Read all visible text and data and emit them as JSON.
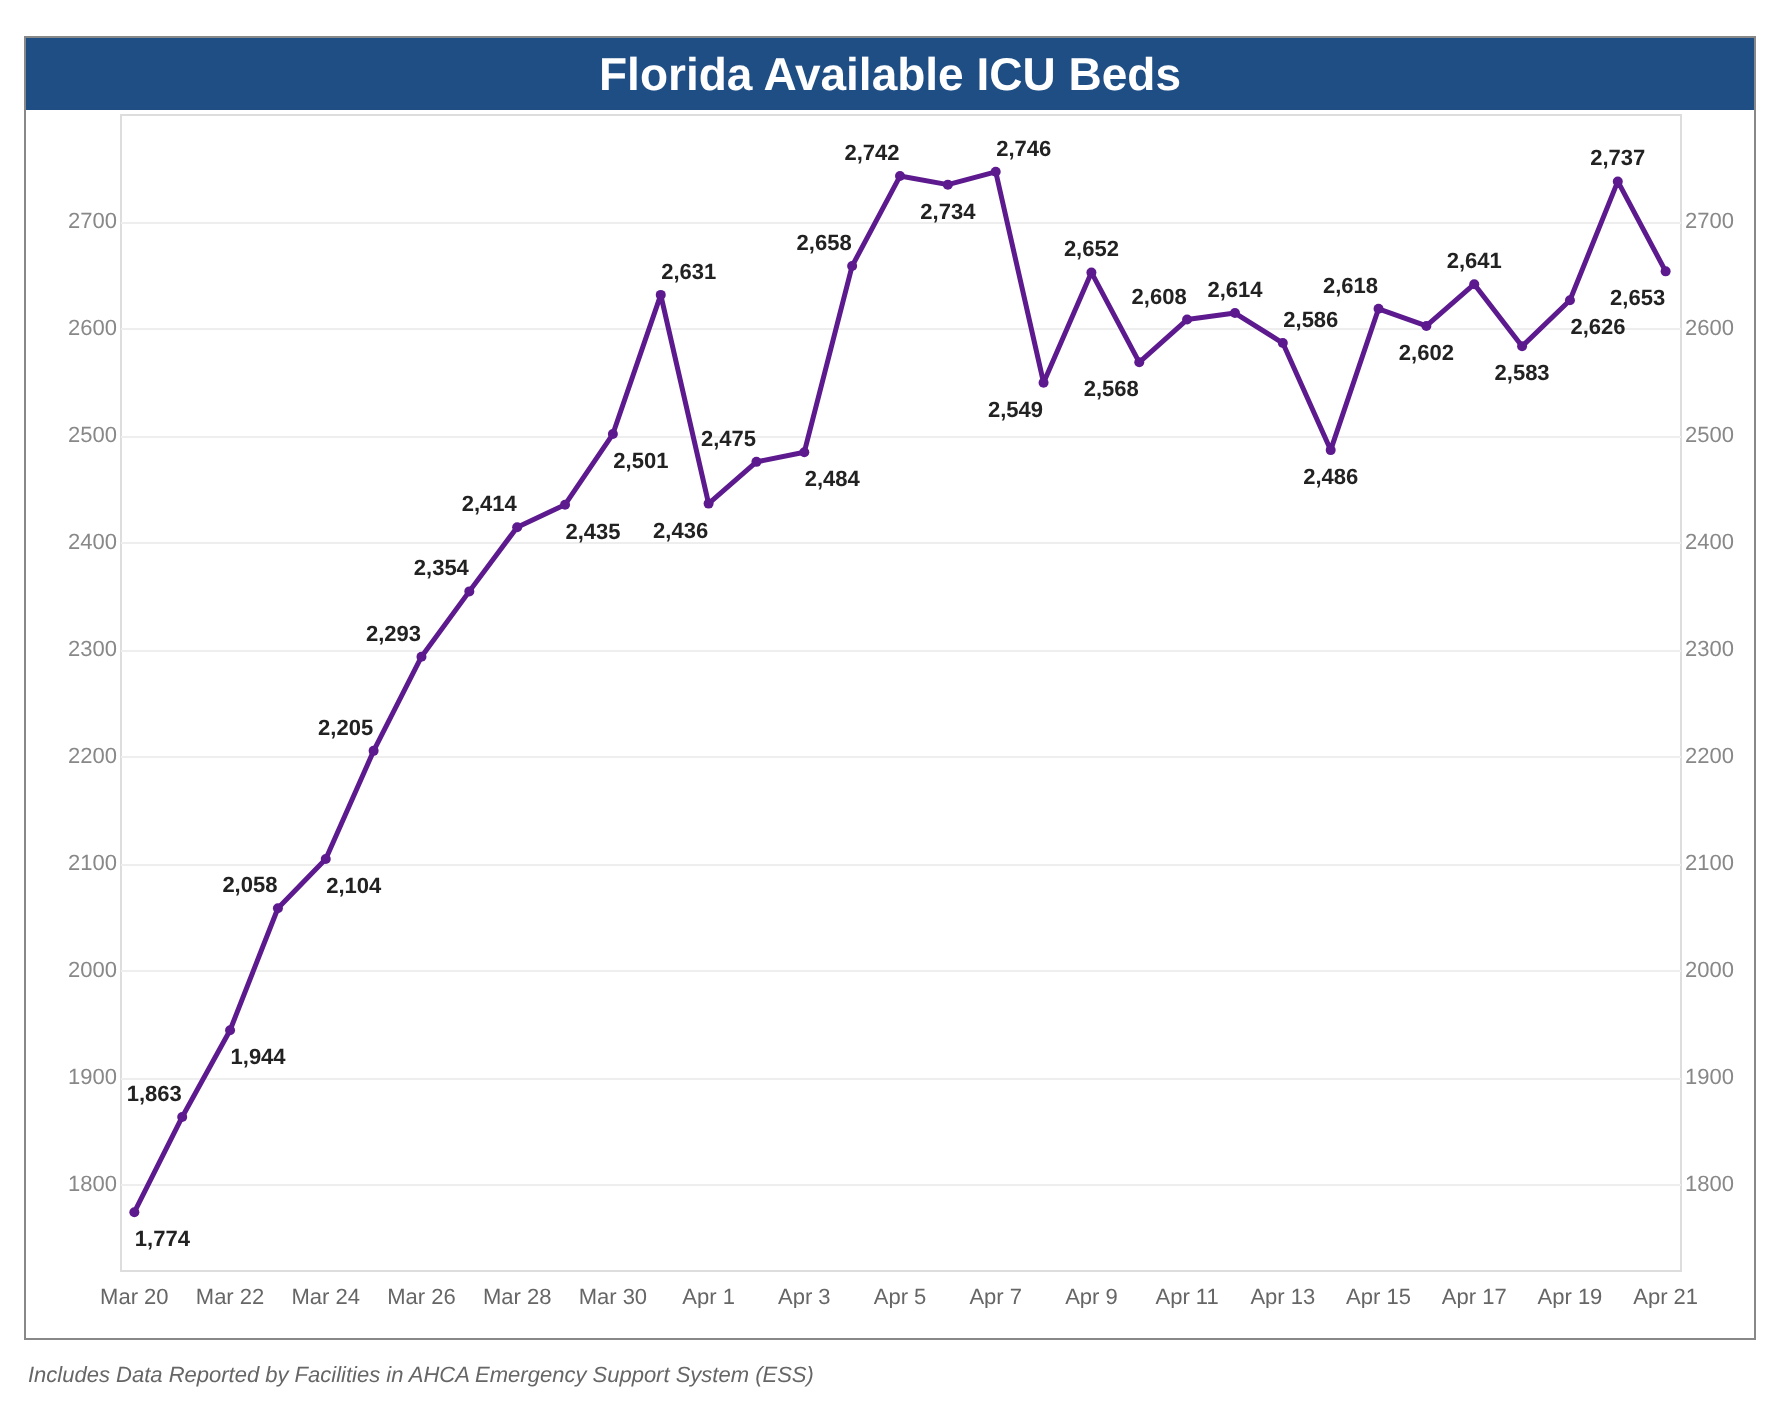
{
  "chart_data": {
    "type": "line",
    "title": "Florida Available ICU Beds",
    "annotations": [
      "Includes Data Reported by Facilities in AHCA Emergency Support System (ESS)"
    ],
    "categories": [
      "Mar 20",
      null,
      "Mar 22",
      null,
      "Mar 24",
      null,
      "Mar 26",
      null,
      "Mar 28",
      null,
      "Mar 30",
      null,
      "Apr 1",
      null,
      "Apr 3",
      null,
      "Apr 5",
      null,
      "Apr 7",
      null,
      "Apr 9",
      null,
      "Apr 11",
      null,
      "Apr 13",
      null,
      "Apr 15",
      null,
      "Apr 17",
      null,
      "Apr 19",
      null,
      "Apr 21"
    ],
    "series": [
      {
        "color": "#5c1a8e",
        "values": [
          1774,
          1863,
          1944,
          2058,
          2104,
          2205,
          2293,
          2354,
          2414,
          2435,
          2501,
          2631,
          2436,
          2475,
          2484,
          2658,
          2742,
          2734,
          2746,
          2549,
          2652,
          2568,
          2608,
          2614,
          2586,
          2486,
          2618,
          2602,
          2641,
          2583,
          2626,
          2737,
          2653
        ],
        "value_labels": [
          "1,774",
          "1,863",
          "1,944",
          "2,058",
          "2,104",
          "2,205",
          "2,293",
          "2,354",
          "2,414",
          "2,435",
          "2,501",
          "2,631",
          "2,436",
          "2,475",
          "2,484",
          "2,658",
          "2,742",
          "2,734",
          "2,746",
          "2,549",
          "2,652",
          "2,568",
          "2,608",
          "2,614",
          "2,586",
          "2,486",
          "2,618",
          "2,602",
          "2,641",
          "2,583",
          "2,626",
          "2,737",
          "2,653"
        ]
      }
    ],
    "ylim": [
      1720,
      2800
    ],
    "yticks": [
      1800,
      1900,
      2000,
      2100,
      2200,
      2300,
      2400,
      2500,
      2600,
      2700
    ],
    "y2lim": [
      1720,
      2800
    ],
    "y2ticks": [
      1800,
      1900,
      2000,
      2100,
      2200,
      2300,
      2400,
      2500,
      2600,
      2700
    ],
    "grid": "y",
    "marker": "circle",
    "line_style": "solid"
  }
}
